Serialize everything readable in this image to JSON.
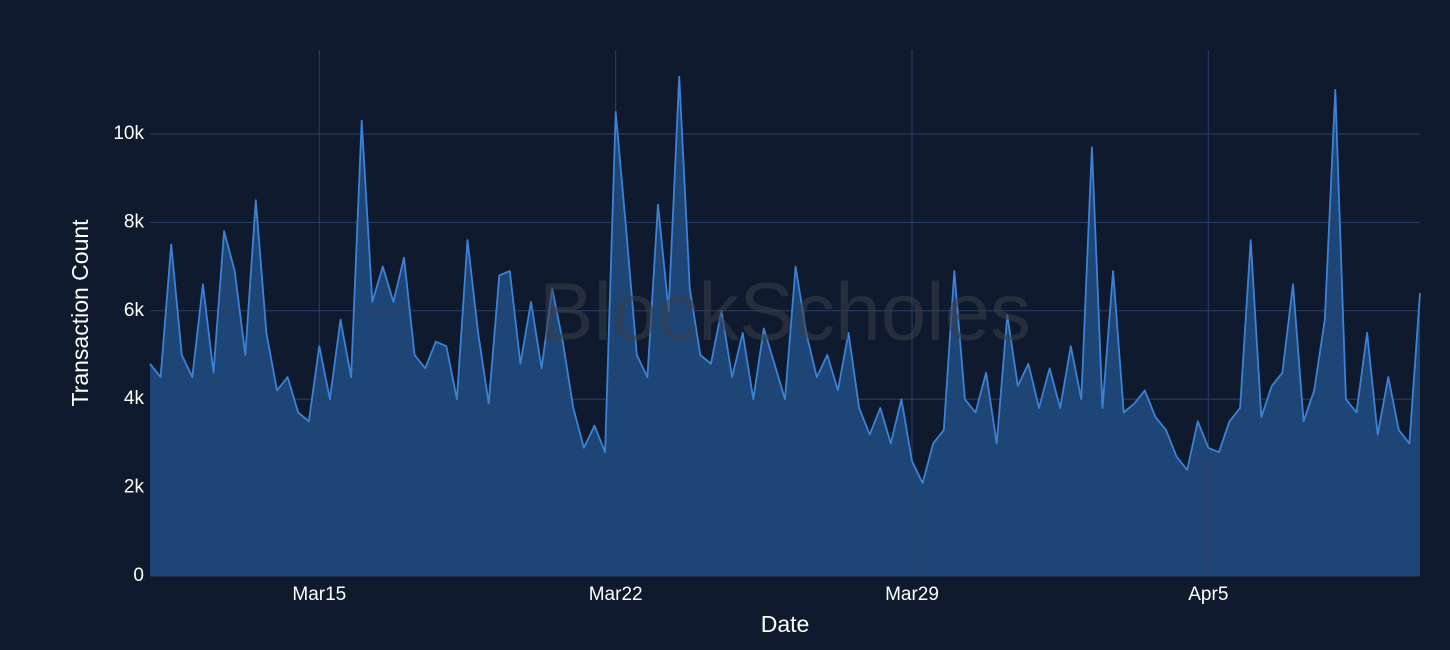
{
  "chart_data": {
    "type": "area",
    "watermark": "BlockScholes",
    "xlabel": "Date",
    "ylabel": "Transaction Count",
    "x": [
      11,
      11.25,
      11.5,
      11.75,
      12,
      12.25,
      12.5,
      12.75,
      13,
      13.25,
      13.5,
      13.75,
      14,
      14.25,
      14.5,
      14.75,
      15,
      15.25,
      15.5,
      15.75,
      16,
      16.25,
      16.5,
      16.75,
      17,
      17.25,
      17.5,
      17.75,
      18,
      18.25,
      18.5,
      18.75,
      19,
      19.25,
      19.5,
      19.75,
      20,
      20.25,
      20.5,
      20.75,
      21,
      21.25,
      21.5,
      21.75,
      22,
      22.25,
      22.5,
      22.75,
      23,
      23.25,
      23.5,
      23.75,
      24,
      24.25,
      24.5,
      24.75,
      25,
      25.25,
      25.5,
      25.75,
      26,
      26.25,
      26.5,
      26.75,
      27,
      27.25,
      27.5,
      27.75,
      28,
      28.25,
      28.5,
      28.75,
      29,
      29.25,
      29.5,
      29.75,
      30,
      30.25,
      30.5,
      30.75,
      31,
      31.25,
      31.5,
      31.75,
      32,
      32.25,
      32.5,
      32.75,
      33,
      33.25,
      33.5,
      33.75,
      34,
      34.25,
      34.5,
      34.75,
      35,
      35.25,
      35.5,
      35.75,
      36,
      36.25,
      36.5,
      36.75,
      37,
      37.25,
      37.5,
      37.75,
      38,
      38.25,
      38.5,
      38.75,
      39,
      39.25,
      39.5,
      39.75,
      40,
      40.25,
      40.5,
      40.75,
      41
    ],
    "series": [
      {
        "name": "Transaction Count",
        "color": "#3b82d6",
        "fill": "#1f4a7e",
        "values": [
          4800,
          4500,
          7500,
          5000,
          4500,
          6600,
          4600,
          7800,
          6900,
          5000,
          8500,
          5500,
          4200,
          4500,
          3700,
          3500,
          5200,
          4000,
          5800,
          4500,
          10300,
          6200,
          7000,
          6200,
          7200,
          5000,
          4700,
          5300,
          5200,
          4000,
          7600,
          5500,
          3900,
          6800,
          6900,
          4800,
          6200,
          4700,
          6500,
          5300,
          3800,
          2900,
          3400,
          2800,
          10500,
          7800,
          5000,
          4500,
          8400,
          6000,
          11300,
          6500,
          5000,
          4800,
          6000,
          4500,
          5500,
          4000,
          5600,
          4800,
          4000,
          7000,
          5500,
          4500,
          5000,
          4200,
          5500,
          3800,
          3200,
          3800,
          3000,
          4000,
          2600,
          2100,
          3000,
          3300,
          6900,
          4000,
          3700,
          4600,
          3000,
          5900,
          4300,
          4800,
          3800,
          4700,
          3800,
          5200,
          4000,
          9700,
          3800,
          6900,
          3700,
          3900,
          4200,
          3600,
          3300,
          2700,
          2400,
          3500,
          2900,
          2800,
          3500,
          3800,
          7600,
          3600,
          4300,
          4600,
          6600,
          3500,
          4200,
          5800,
          11000,
          4000,
          3700,
          5500,
          3200,
          4500,
          3300,
          3000,
          6400
        ]
      }
    ],
    "xlim": [
      11,
      41
    ],
    "xticks": [
      {
        "value": 15,
        "label": "Mar15"
      },
      {
        "value": 22,
        "label": "Mar22"
      },
      {
        "value": 29,
        "label": "Mar29"
      },
      {
        "value": 36,
        "label": "Apr5"
      }
    ],
    "ylim": [
      0,
      11900
    ],
    "yticks": [
      0,
      {
        "value": 2000,
        "label": "2k"
      },
      {
        "value": 4000,
        "label": "4k"
      },
      {
        "value": 6000,
        "label": "6k"
      },
      {
        "value": 8000,
        "label": "8k"
      },
      {
        "value": 10000,
        "label": "10k"
      }
    ],
    "grid": true
  }
}
